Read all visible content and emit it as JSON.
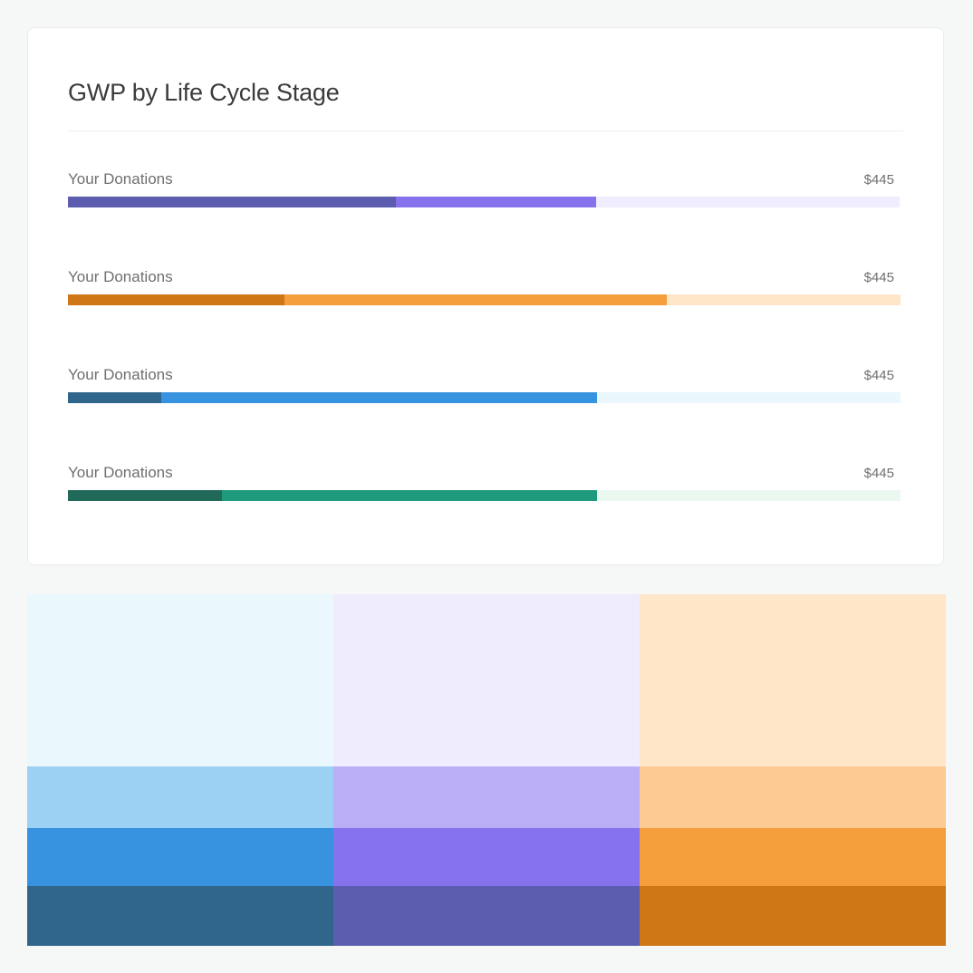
{
  "card": {
    "title": "GWP by Life Cycle Stage"
  },
  "chart_data": {
    "type": "bar",
    "orientation": "horizontal-stacked",
    "title": "GWP by Life Cycle Stage",
    "xlim": [
      0,
      1
    ],
    "rows": [
      {
        "label": "Your Donations",
        "value": "$445",
        "segments": [
          {
            "fraction": 0.394,
            "color": "#5c5daf"
          },
          {
            "fraction": 0.241,
            "color": "#8672ed"
          },
          {
            "fraction": 0.365,
            "color": "#f0edfe"
          }
        ]
      },
      {
        "label": "Your Donations",
        "value": "$445",
        "segments": [
          {
            "fraction": 0.26,
            "color": "#cf7617"
          },
          {
            "fraction": 0.459,
            "color": "#f49e3c"
          },
          {
            "fraction": 0.281,
            "color": "#ffe6c8"
          }
        ]
      },
      {
        "label": "Your Donations",
        "value": "$445",
        "segments": [
          {
            "fraction": 0.112,
            "color": "#30668c"
          },
          {
            "fraction": 0.523,
            "color": "#3792e0"
          },
          {
            "fraction": 0.365,
            "color": "#eaf7fd"
          }
        ]
      },
      {
        "label": "Your Donations",
        "value": "$445",
        "segments": [
          {
            "fraction": 0.185,
            "color": "#216a5a"
          },
          {
            "fraction": 0.45,
            "color": "#1e9a7c"
          },
          {
            "fraction": 0.365,
            "color": "#eaf8ef"
          }
        ]
      }
    ]
  },
  "palette": [
    {
      "name": "blue",
      "swatches": [
        {
          "color": "#eaf7fd",
          "weight": 190
        },
        {
          "color": "#9dd1f4",
          "weight": 67
        },
        {
          "color": "#3792e0",
          "weight": 64
        },
        {
          "color": "#30668c",
          "weight": 66
        }
      ]
    },
    {
      "name": "purple",
      "swatches": [
        {
          "color": "#efecfd",
          "weight": 190
        },
        {
          "color": "#baaff7",
          "weight": 67
        },
        {
          "color": "#8672ed",
          "weight": 64
        },
        {
          "color": "#5c5daf",
          "weight": 66
        }
      ]
    },
    {
      "name": "orange",
      "swatches": [
        {
          "color": "#ffe6c8",
          "weight": 190
        },
        {
          "color": "#fdca94",
          "weight": 67
        },
        {
          "color": "#f49e3c",
          "weight": 64
        },
        {
          "color": "#cf7617",
          "weight": 66
        }
      ]
    }
  ]
}
